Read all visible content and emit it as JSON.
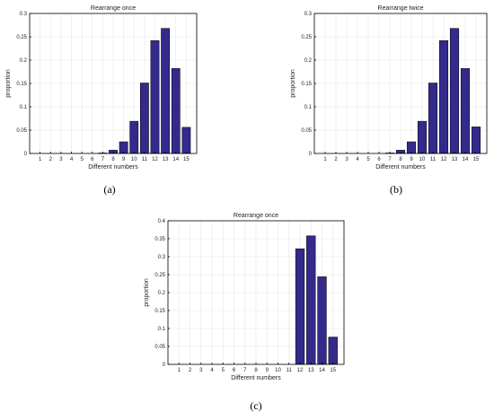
{
  "chart_data": [
    {
      "type": "bar",
      "panel_label": "(a)",
      "title": "Rearrange once",
      "xlabel": "Different numbers",
      "ylabel": "proportion",
      "categories": [
        "1",
        "2",
        "3",
        "4",
        "5",
        "6",
        "7",
        "8",
        "9",
        "10",
        "11",
        "12",
        "13",
        "14",
        "15"
      ],
      "values": [
        0,
        0,
        0,
        0,
        0,
        0,
        0.001,
        0.007,
        0.025,
        0.069,
        0.151,
        0.242,
        0.268,
        0.182,
        0.056
      ],
      "ylim": [
        0,
        0.3
      ],
      "yticks": [
        "0",
        "0.05",
        "0.1",
        "0.15",
        "0.2",
        "0.25",
        "0.3"
      ],
      "grid": true
    },
    {
      "type": "bar",
      "panel_label": "(b)",
      "title": "Rearrange twice",
      "xlabel": "Different numbers",
      "ylabel": "proportion",
      "categories": [
        "1",
        "2",
        "3",
        "4",
        "5",
        "6",
        "7",
        "8",
        "9",
        "10",
        "11",
        "12",
        "13",
        "14",
        "15"
      ],
      "values": [
        0,
        0,
        0,
        0,
        0,
        0,
        0.001,
        0.007,
        0.025,
        0.069,
        0.151,
        0.242,
        0.268,
        0.182,
        0.057
      ],
      "ylim": [
        0,
        0.3
      ],
      "yticks": [
        "0",
        "0.05",
        "0.1",
        "0.15",
        "0.2",
        "0.25",
        "0.3"
      ],
      "grid": true
    },
    {
      "type": "bar",
      "panel_label": "(c)",
      "title": "Rearrange once",
      "xlabel": "Different numbers",
      "ylabel": "proportion",
      "categories": [
        "1",
        "2",
        "3",
        "4",
        "5",
        "6",
        "7",
        "8",
        "9",
        "10",
        "11",
        "12",
        "13",
        "14",
        "15"
      ],
      "values": [
        0,
        0,
        0,
        0,
        0,
        0,
        0,
        0,
        0,
        0,
        0,
        0.322,
        0.358,
        0.244,
        0.076
      ],
      "ylim": [
        0,
        0.4
      ],
      "yticks": [
        "0",
        "0.05",
        "0.1",
        "0.15",
        "0.2",
        "0.25",
        "0.3",
        "0.35",
        "0.4"
      ],
      "grid": true
    }
  ]
}
